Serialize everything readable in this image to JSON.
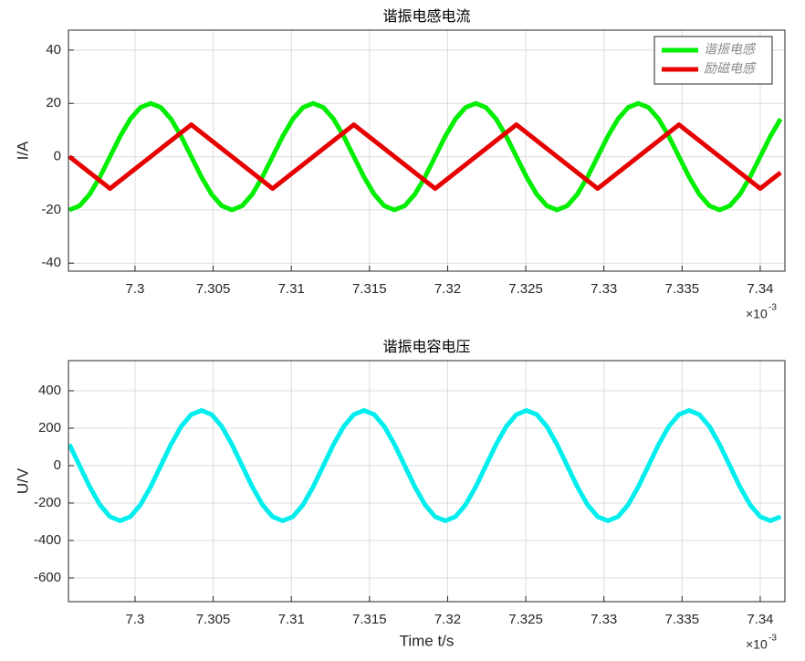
{
  "chart_data": [
    {
      "type": "line",
      "title": "谐振电感电流",
      "ylabel": "I/A",
      "x_multiplier_label": "×10",
      "x_multiplier_power": "-3",
      "x": [
        7.2958,
        7.29645,
        7.2971,
        7.29775,
        7.2984,
        7.29905,
        7.2997,
        7.30035,
        7.301,
        7.30165,
        7.3023,
        7.30295,
        7.3036,
        7.30425,
        7.3049,
        7.30555,
        7.3062,
        7.30685,
        7.3075,
        7.30815,
        7.3088,
        7.30945,
        7.3101,
        7.31075,
        7.3114,
        7.31205,
        7.3127,
        7.31335,
        7.314,
        7.31465,
        7.3153,
        7.31595,
        7.3166,
        7.31725,
        7.3179,
        7.31855,
        7.3192,
        7.31985,
        7.3205,
        7.32115,
        7.3218,
        7.32245,
        7.3231,
        7.32375,
        7.3244,
        7.32505,
        7.3257,
        7.32635,
        7.327,
        7.32765,
        7.3283,
        7.32895,
        7.3296,
        7.33025,
        7.3309,
        7.33155,
        7.3322,
        7.33285,
        7.3335,
        7.33415,
        7.3348,
        7.33545,
        7.3361,
        7.33675,
        7.3374,
        7.33805,
        7.3387,
        7.33935,
        7.34,
        7.34065,
        7.3413
      ],
      "series": [
        {
          "name": "谐振电感",
          "color": "#00ee00",
          "values": [
            -20,
            -18.48,
            -14.14,
            -7.65,
            0,
            7.65,
            14.14,
            18.48,
            20,
            18.48,
            14.14,
            7.65,
            0,
            -7.65,
            -14.14,
            -18.48,
            -20,
            -18.48,
            -14.14,
            -7.65,
            0,
            7.65,
            14.14,
            18.48,
            20,
            18.48,
            14.14,
            7.65,
            0,
            -7.65,
            -14.14,
            -18.48,
            -20,
            -18.48,
            -14.14,
            -7.65,
            0,
            7.65,
            14.14,
            18.48,
            20,
            18.48,
            14.14,
            7.65,
            0,
            -7.65,
            -14.14,
            -18.48,
            -20,
            -18.48,
            -14.14,
            -7.65,
            0,
            7.65,
            14.14,
            18.48,
            20,
            18.48,
            14.14,
            7.65,
            0,
            -7.65,
            -14.14,
            -18.48,
            -20,
            -18.48,
            -14.14,
            -7.65,
            0,
            7.65,
            14.14
          ]
        },
        {
          "name": "励磁电感",
          "color": "#e60000",
          "values": [
            0,
            -3,
            -6,
            -9,
            -12,
            -9,
            -6,
            -3,
            0,
            3,
            6,
            9,
            12,
            9,
            6,
            3,
            0,
            -3,
            -6,
            -9,
            -12,
            -9,
            -6,
            -3,
            0,
            3,
            6,
            9,
            12,
            9,
            6,
            3,
            0,
            -3,
            -6,
            -9,
            -12,
            -9,
            -6,
            -3,
            0,
            3,
            6,
            9,
            12,
            9,
            6,
            3,
            0,
            -3,
            -6,
            -9,
            -12,
            -9,
            -6,
            -3,
            0,
            3,
            6,
            9,
            12,
            9,
            6,
            3,
            0,
            -3,
            -6,
            -9,
            -12,
            -9,
            -6
          ]
        }
      ],
      "xlim": [
        7.29574,
        7.34158
      ],
      "xticks": [
        7.3,
        7.305,
        7.31,
        7.315,
        7.32,
        7.325,
        7.33,
        7.335,
        7.34
      ],
      "ylim": [
        -43,
        47.5
      ],
      "yticks": [
        -40,
        -20,
        0,
        20,
        40
      ],
      "grid": true,
      "legend": "northeast"
    },
    {
      "type": "line",
      "title": "谐振电容电压",
      "ylabel": "U/V",
      "xlabel": "Time t/s",
      "x_multiplier_label": "×10",
      "x_multiplier_power": "-3",
      "x": [
        7.2958,
        7.29645,
        7.2971,
        7.29775,
        7.2984,
        7.29905,
        7.2997,
        7.30035,
        7.301,
        7.30165,
        7.3023,
        7.30295,
        7.3036,
        7.30425,
        7.3049,
        7.30555,
        7.3062,
        7.30685,
        7.3075,
        7.30815,
        7.3088,
        7.30945,
        7.3101,
        7.31075,
        7.3114,
        7.31205,
        7.3127,
        7.31335,
        7.314,
        7.31465,
        7.3153,
        7.31595,
        7.3166,
        7.31725,
        7.3179,
        7.31855,
        7.3192,
        7.31985,
        7.3205,
        7.32115,
        7.3218,
        7.32245,
        7.3231,
        7.32375,
        7.3244,
        7.32505,
        7.3257,
        7.32635,
        7.327,
        7.32765,
        7.3283,
        7.32895,
        7.3296,
        7.33025,
        7.3309,
        7.33155,
        7.3322,
        7.33285,
        7.3335,
        7.33415,
        7.3348,
        7.33545,
        7.3361,
        7.33675,
        7.3374,
        7.33805,
        7.3387,
        7.33935,
        7.34,
        7.34065,
        7.3413
      ],
      "series": [
        {
          "color": "#00eeee",
          "values": [
            113,
            0,
            -113,
            -209,
            -273,
            -295,
            -273,
            -209,
            -113,
            0,
            113,
            209,
            273,
            295,
            273,
            209,
            113,
            0,
            -113,
            -209,
            -273,
            -295,
            -273,
            -209,
            -113,
            0,
            113,
            209,
            273,
            295,
            273,
            209,
            113,
            0,
            -113,
            -209,
            -273,
            -295,
            -273,
            -209,
            -113,
            0,
            113,
            209,
            273,
            295,
            273,
            209,
            113,
            0,
            -113,
            -209,
            -273,
            -295,
            -273,
            -209,
            -113,
            0,
            113,
            209,
            273,
            295,
            273,
            209,
            113,
            0,
            -113,
            -209,
            -273,
            -295,
            -273
          ]
        }
      ],
      "xlim": [
        7.29574,
        7.34158
      ],
      "xticks": [
        7.3,
        7.305,
        7.31,
        7.315,
        7.32,
        7.325,
        7.33,
        7.335,
        7.34
      ],
      "ylim": [
        -727,
        561
      ],
      "yticks": [
        -600,
        -400,
        -200,
        0,
        200,
        400
      ],
      "grid": true
    }
  ]
}
